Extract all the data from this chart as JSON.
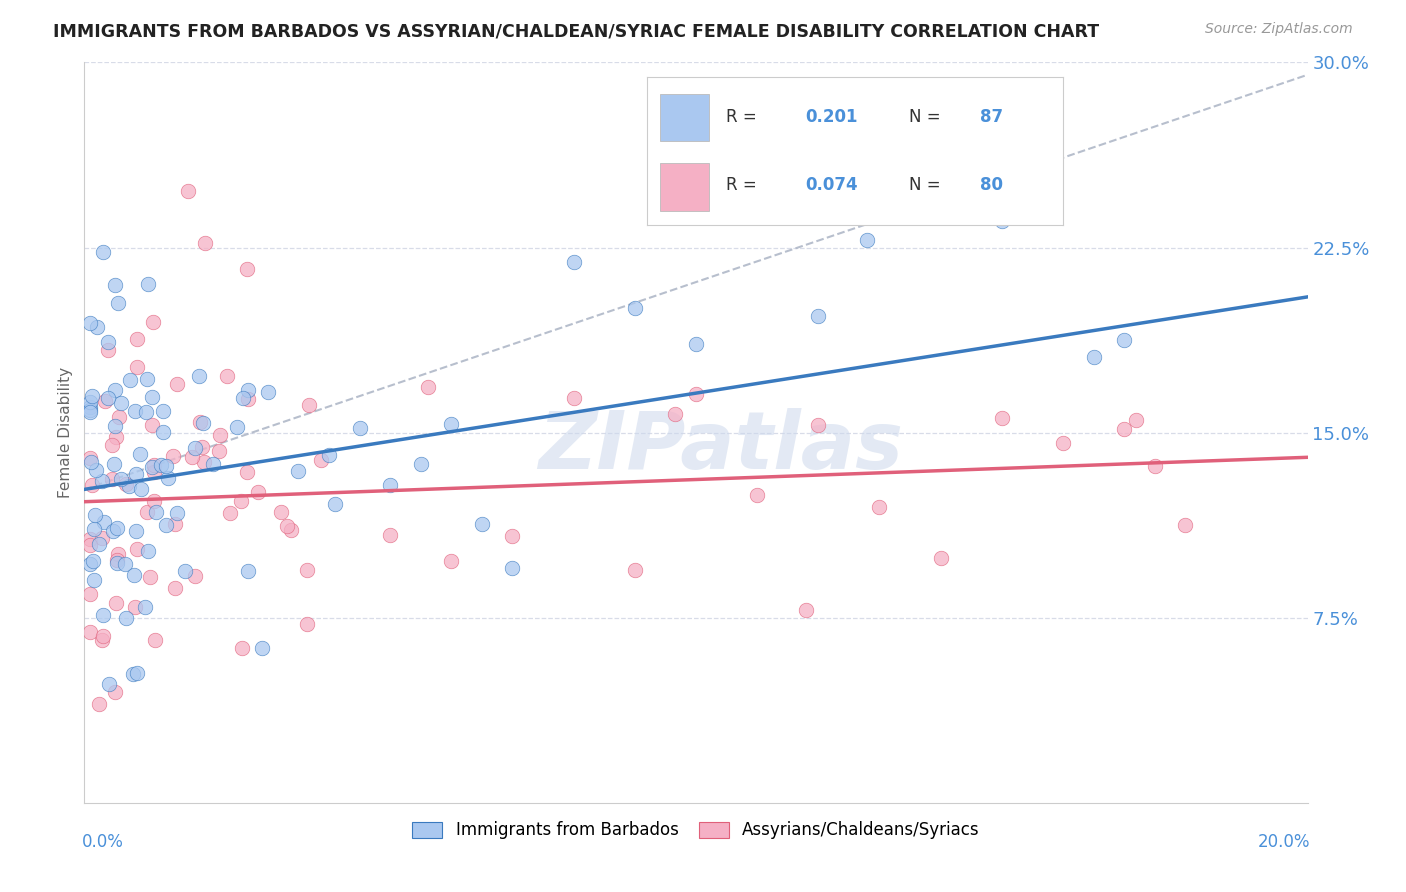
{
  "title": "IMMIGRANTS FROM BARBADOS VS ASSYRIAN/CHALDEAN/SYRIAC FEMALE DISABILITY CORRELATION CHART",
  "source": "Source: ZipAtlas.com",
  "ylabel": "Female Disability",
  "x_min": 0.0,
  "x_max": 0.2,
  "y_min": 0.0,
  "y_max": 0.3,
  "color_blue": "#aac8f0",
  "color_pink": "#f5b0c5",
  "color_blue_line": "#3a7abf",
  "color_pink_line": "#e0607a",
  "color_dash": "#b0b8c8",
  "color_text_blue": "#4a90d9",
  "color_grid": "#d8dce8",
  "series1_label": "Immigrants from Barbados",
  "series2_label": "Assyrians/Chaldeans/Syriacs",
  "legend_r1": "0.201",
  "legend_n1": "87",
  "legend_r2": "0.074",
  "legend_n2": "80",
  "blue_line_x0": 0.0,
  "blue_line_y0": 0.127,
  "blue_line_x1": 0.2,
  "blue_line_y1": 0.205,
  "pink_line_x0": 0.0,
  "pink_line_y0": 0.122,
  "pink_line_x1": 0.2,
  "pink_line_y1": 0.14,
  "dash_line_x0": 0.0,
  "dash_line_y0": 0.127,
  "dash_line_x1": 0.2,
  "dash_line_y1": 0.295
}
